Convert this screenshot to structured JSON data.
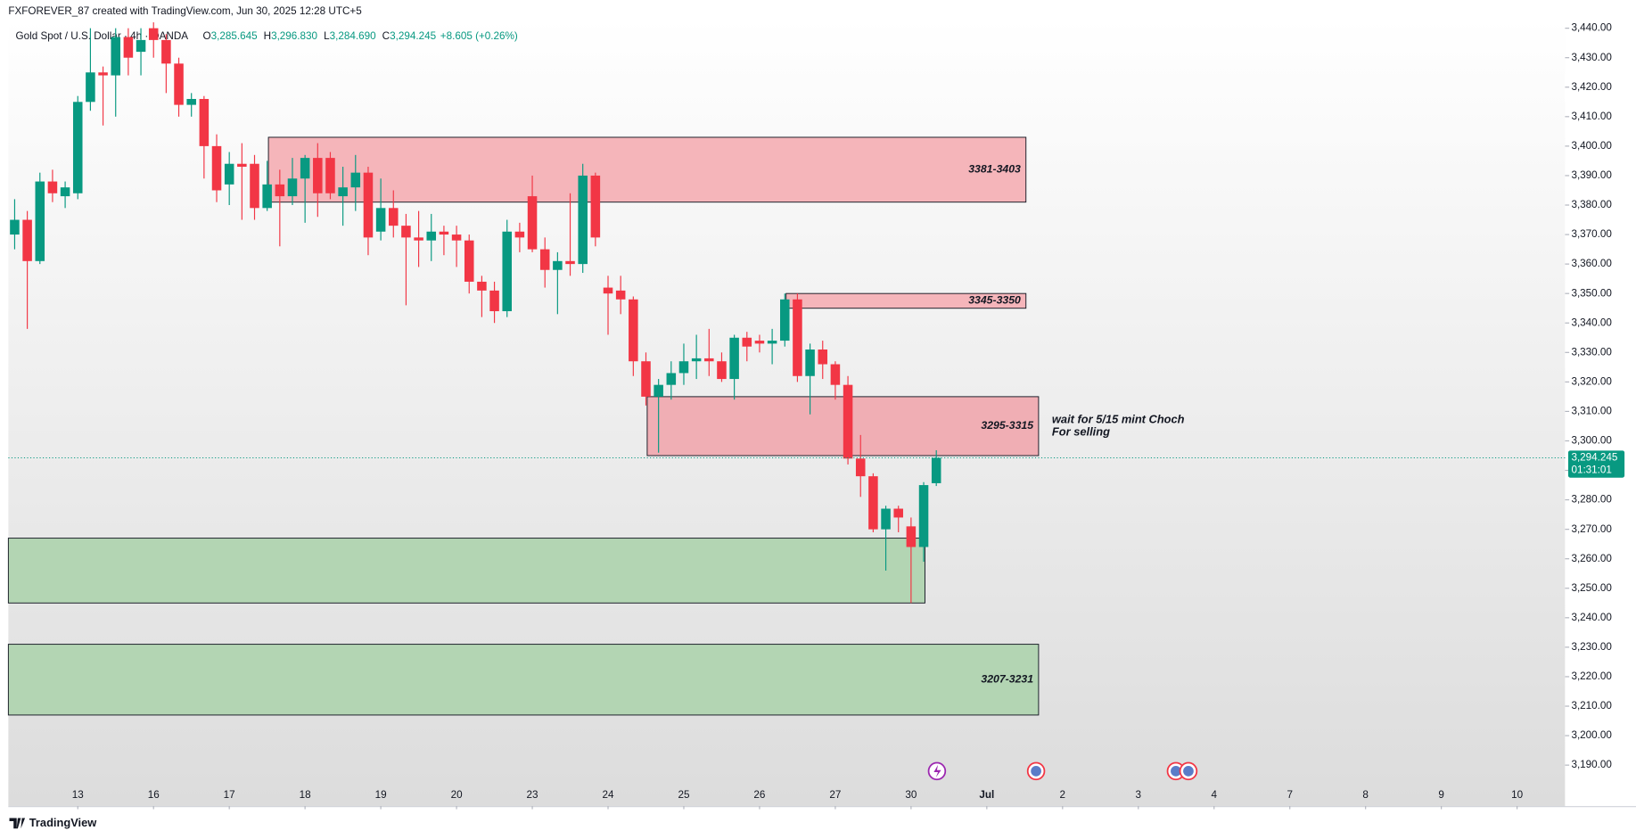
{
  "header": {
    "credit": "FXFOREVER_87 created with TradingView.com, Jun 30, 2025 12:28 UTC+5",
    "symbol": "Gold Spot / U.S. Dollar · 4h · OANDA",
    "ohlc": [
      {
        "label": "O",
        "value": "3,285.645"
      },
      {
        "label": "H",
        "value": "3,296.830"
      },
      {
        "label": "L",
        "value": "3,284.690"
      },
      {
        "label": "C",
        "value": "3,294.245"
      }
    ],
    "change": "+8.605 (+0.26%)"
  },
  "footer": {
    "brand": "TradingView"
  },
  "chart_data": {
    "type": "candlestick",
    "x": [
      0,
      1,
      2,
      3,
      4,
      5,
      6,
      7,
      8,
      9,
      10,
      11,
      12,
      13,
      14,
      15,
      16,
      17,
      18,
      19,
      20,
      21,
      22,
      23,
      24,
      25,
      26,
      27,
      28,
      29,
      30,
      31,
      32,
      33,
      34,
      35,
      36,
      37,
      38,
      39,
      40,
      41,
      42,
      43,
      44,
      45,
      46,
      47,
      48,
      49,
      50,
      51,
      52,
      53,
      54,
      55,
      56,
      57,
      58,
      59,
      60,
      61,
      62,
      63,
      64,
      65,
      66,
      67,
      68,
      69,
      70,
      71,
      72,
      73
    ],
    "open": [
      3370,
      3375,
      3361,
      3388,
      3383,
      3384,
      3415,
      3425,
      3424,
      3437,
      3432,
      3440,
      3436,
      3428,
      3414,
      3416,
      3400,
      3387,
      3394,
      3394,
      3379,
      3387,
      3383,
      3389,
      3396,
      3396,
      3383,
      3386,
      3391,
      3371,
      3379,
      3373,
      3369,
      3368,
      3371,
      3370,
      3368,
      3354,
      3351,
      3344,
      3371,
      3383,
      3365,
      3358,
      3361,
      3360,
      3390,
      3352,
      3351,
      3348,
      3327,
      3315,
      3319,
      3323,
      3327,
      3328,
      3327,
      3321,
      3335,
      3334,
      3333,
      3334,
      3348,
      3322,
      3331,
      3326,
      3319,
      3294,
      3288,
      3270,
      3277,
      3271,
      3264,
      3285.645
    ],
    "high": [
      3382,
      3378,
      3391,
      3392,
      3388,
      3417,
      3440,
      3427,
      3440,
      3440,
      3440,
      3442,
      3438,
      3430,
      3418,
      3417,
      3404,
      3398,
      3401,
      3397,
      3395,
      3392,
      3396,
      3397,
      3401,
      3398,
      3393,
      3397,
      3393,
      3389,
      3385,
      3377,
      3378,
      3377,
      3373,
      3373,
      3370,
      3356,
      3354,
      3375,
      3374,
      3390,
      3369,
      3364,
      3384,
      3394,
      3391,
      3356,
      3356,
      3349,
      3330,
      3321,
      3327,
      3333,
      3336,
      3338,
      3330,
      3336,
      3337,
      3336,
      3338,
      3350,
      3350,
      3333,
      3334,
      3327,
      3322,
      3302,
      3289,
      3278,
      3278,
      3274,
      3286,
      3296.83
    ],
    "low": [
      3365,
      3338,
      3360,
      3381,
      3379,
      3382,
      3412,
      3407,
      3410,
      3424,
      3424,
      3430,
      3418,
      3410,
      3410,
      3389,
      3381,
      3380,
      3375,
      3375,
      3378,
      3366,
      3380,
      3374,
      3376,
      3382,
      3373,
      3378,
      3363,
      3368,
      3369,
      3346,
      3359,
      3361,
      3363,
      3359,
      3350,
      3342,
      3340,
      3342,
      3364,
      3364,
      3352,
      3343,
      3356,
      3357,
      3366,
      3336,
      3343,
      3322,
      3312,
      3296,
      3314,
      3319,
      3321,
      3322,
      3320,
      3314,
      3327,
      3330,
      3326,
      3332,
      3320,
      3309,
      3321,
      3314,
      3292,
      3281,
      3269,
      3256,
      3269,
      3245,
      3259,
      3284.69
    ],
    "close": [
      3375,
      3361,
      3388,
      3384,
      3386,
      3415,
      3425,
      3424,
      3437,
      3430,
      3436,
      3436,
      3428,
      3414,
      3416,
      3400,
      3385,
      3394,
      3393,
      3379,
      3387,
      3383,
      3389,
      3396,
      3384,
      3384,
      3386,
      3391,
      3369,
      3379,
      3373,
      3369,
      3368,
      3371,
      3370,
      3368,
      3354,
      3351,
      3344,
      3371,
      3369,
      3365,
      3358,
      3361,
      3360,
      3390,
      3369,
      3350,
      3348,
      3327,
      3315,
      3319,
      3323,
      3327,
      3328,
      3327,
      3321,
      3335,
      3332,
      3333,
      3334,
      3348,
      3322,
      3331,
      3326,
      3319,
      3294,
      3288,
      3270,
      3277,
      3274,
      3264,
      3285,
      3294.245
    ],
    "up_color": "#089981",
    "down_color": "#f23645",
    "xlim": [
      -0.5,
      122.8
    ],
    "xticks": [
      {
        "value": 5,
        "label": "13"
      },
      {
        "value": 11,
        "label": "16"
      },
      {
        "value": 17,
        "label": "17"
      },
      {
        "value": 23,
        "label": "18"
      },
      {
        "value": 29,
        "label": "19"
      },
      {
        "value": 35,
        "label": "20"
      },
      {
        "value": 41,
        "label": "23"
      },
      {
        "value": 47,
        "label": "24"
      },
      {
        "value": 53,
        "label": "25"
      },
      {
        "value": 59,
        "label": "26"
      },
      {
        "value": 65,
        "label": "27"
      },
      {
        "value": 71,
        "label": "30"
      },
      {
        "value": 77,
        "label": "Jul"
      },
      {
        "value": 83,
        "label": "2"
      },
      {
        "value": 89,
        "label": "3"
      },
      {
        "value": 95,
        "label": "4"
      },
      {
        "value": 101,
        "label": "7"
      },
      {
        "value": 107,
        "label": "8"
      },
      {
        "value": 113,
        "label": "9"
      },
      {
        "value": 119,
        "label": "10"
      }
    ],
    "ylim": [
      3176.1,
      3442.5
    ],
    "yticks": [
      {
        "value": 3190,
        "label": "3,190.00"
      },
      {
        "value": 3200,
        "label": "3,200.00"
      },
      {
        "value": 3210,
        "label": "3,210.00"
      },
      {
        "value": 3220,
        "label": "3,220.00"
      },
      {
        "value": 3230,
        "label": "3,230.00"
      },
      {
        "value": 3240,
        "label": "3,240.00"
      },
      {
        "value": 3250,
        "label": "3,250.00"
      },
      {
        "value": 3260,
        "label": "3,260.00"
      },
      {
        "value": 3270,
        "label": "3,270.00"
      },
      {
        "value": 3280,
        "label": "3,280.00"
      },
      {
        "value": 3290,
        "label": "3,290.00"
      },
      {
        "value": 3300,
        "label": "3,300.00"
      },
      {
        "value": 3310,
        "label": "3,310.00"
      },
      {
        "value": 3320,
        "label": "3,320.00"
      },
      {
        "value": 3330,
        "label": "3,330.00"
      },
      {
        "value": 3340,
        "label": "3,340.00"
      },
      {
        "value": 3350,
        "label": "3,350.00"
      },
      {
        "value": 3360,
        "label": "3,360.00"
      },
      {
        "value": 3370,
        "label": "3,370.00"
      },
      {
        "value": 3380,
        "label": "3,380.00"
      },
      {
        "value": 3390,
        "label": "3,390.00"
      },
      {
        "value": 3400,
        "label": "3,400.00"
      },
      {
        "value": 3410,
        "label": "3,410.00"
      },
      {
        "value": 3420,
        "label": "3,420.00"
      },
      {
        "value": 3430,
        "label": "3,430.00"
      },
      {
        "value": 3440,
        "label": "3,440.00"
      }
    ],
    "zones": [
      {
        "label": "3381-3403",
        "low": 3381,
        "high": 3403,
        "x": [
          20.1,
          80.1
        ],
        "color": "#f5b5ba"
      },
      {
        "label": "3345-3350",
        "low": 3345,
        "high": 3350,
        "x": [
          61.1,
          80.1
        ],
        "color": "#f5b5ba"
      },
      {
        "label": "3295-3315",
        "low": 3295,
        "high": 3315,
        "x": [
          50.1,
          81.1
        ],
        "color": "#f0aeb4"
      },
      {
        "low": 3245,
        "high": 3267,
        "x": [
          -0.5,
          72.1
        ],
        "color": "#b3d5b3"
      },
      {
        "label": "3207-3231",
        "low": 3207,
        "high": 3231,
        "x": [
          -0.5,
          81.1
        ],
        "color": "#b3d5b3"
      }
    ],
    "annotation": {
      "lines": [
        "wait for 5/15 mint Choch",
        "For selling"
      ],
      "x": 81.5,
      "y": 3305
    },
    "last_price": {
      "value": 3294.245,
      "label": "3,294.245",
      "countdown": "01:31:01",
      "color": "#089981"
    }
  }
}
